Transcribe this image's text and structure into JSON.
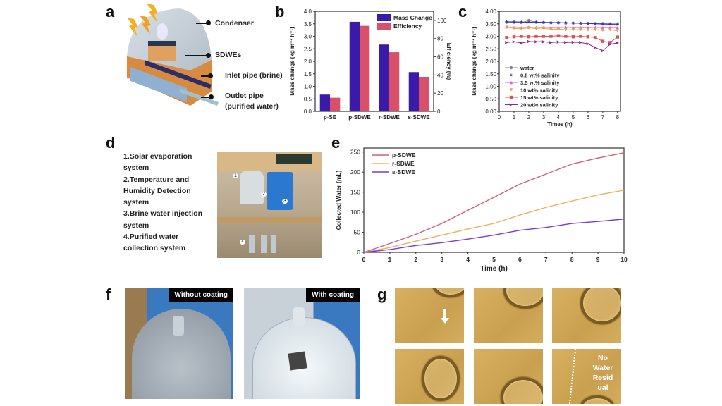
{
  "panels": {
    "a": {
      "label": "a",
      "callouts": [
        "Condenser",
        "SDWEs",
        "Inlet pipe (brine)",
        "Outlet pipe",
        "(purified water)"
      ]
    },
    "b": {
      "label": "b"
    },
    "c": {
      "label": "c"
    },
    "d": {
      "label": "d",
      "list": [
        "1.Solar evaporation",
        "system",
        "2.Temperature and",
        "Humidity Detection",
        "system",
        "3.Brine water injection",
        "system",
        "4.Purified water",
        "collection system"
      ],
      "photo_markers": [
        "1",
        "2",
        "3",
        "4"
      ]
    },
    "e": {
      "label": "e"
    },
    "f": {
      "label": "f",
      "captions": [
        "Without coating",
        "With coating"
      ]
    },
    "g": {
      "label": "g",
      "annotation": [
        "No",
        "Water",
        "Resid",
        "ual"
      ]
    }
  },
  "chart_data": [
    {
      "panel": "b",
      "type": "bar",
      "categories": [
        "p-SE",
        "p-SDWE",
        "r-SDWE",
        "s-SDWE"
      ],
      "series": [
        {
          "name": "Mass Change",
          "axis": "left",
          "color": "#3a1aa8",
          "values": [
            0.67,
            3.58,
            2.67,
            1.57
          ]
        },
        {
          "name": "Efficiency",
          "axis": "right",
          "color": "#d8506a",
          "values": [
            15,
            94,
            65,
            38
          ]
        }
      ],
      "ylabel": "Mass change (kg m⁻² h⁻¹)",
      "ylabel_right": "Efficiency (%)",
      "ylim": [
        0,
        4
      ],
      "yticks": [
        "0.0",
        "0.5",
        "1.0",
        "1.5",
        "2.0",
        "2.5",
        "3.0",
        "3.5",
        "4.0"
      ],
      "ylim_right": [
        0,
        110
      ],
      "yticks_right": [
        "0",
        "20",
        "40",
        "60",
        "80",
        "100"
      ],
      "legend": "top-right"
    },
    {
      "panel": "c",
      "type": "line",
      "xlabel": "Times (h)",
      "ylabel": "Mass change (kg m⁻² h⁻¹)",
      "xlim": [
        0,
        8.2
      ],
      "xticks": [
        "0",
        "1",
        "2",
        "3",
        "4",
        "5",
        "6",
        "7",
        "8"
      ],
      "ylim": [
        0,
        4
      ],
      "yticks": [
        "0.00",
        "0.50",
        "1.00",
        "1.50",
        "2.00",
        "2.50",
        "3.00",
        "3.50",
        "4.00"
      ],
      "legend": "bottom-left",
      "x": [
        0.5,
        1,
        1.5,
        2,
        2.5,
        3,
        3.5,
        4,
        4.5,
        5,
        5.5,
        6,
        6.5,
        7,
        7.5,
        8
      ],
      "series": [
        {
          "name": "water",
          "color": "#888888",
          "marker": "circle",
          "values": [
            3.56,
            3.56,
            3.55,
            3.63,
            3.56,
            3.55,
            3.54,
            3.54,
            3.53,
            3.53,
            3.52,
            3.52,
            3.51,
            3.51,
            3.5,
            3.5
          ]
        },
        {
          "name": "0.8 wt% salinity",
          "color": "#2a2ae0",
          "marker": "star",
          "values": [
            3.58,
            3.58,
            3.57,
            3.56,
            3.57,
            3.56,
            3.55,
            3.55,
            3.54,
            3.53,
            3.52,
            3.51,
            3.5,
            3.49,
            3.48,
            3.47
          ]
        },
        {
          "name": "3.5 wt% salinity",
          "color": "#e060e0",
          "marker": "triangle-up",
          "values": [
            3.38,
            3.36,
            3.35,
            3.37,
            3.36,
            3.36,
            3.35,
            3.35,
            3.36,
            3.35,
            3.35,
            3.35,
            3.36,
            3.35,
            3.35,
            3.35
          ]
        },
        {
          "name": "10 wt% salinity",
          "color": "#f0a040",
          "marker": "triangle-down",
          "values": [
            3.36,
            3.32,
            3.3,
            3.34,
            3.31,
            3.33,
            3.28,
            3.29,
            3.26,
            3.26,
            3.27,
            3.25,
            3.27,
            3.24,
            3.26,
            3.22
          ]
        },
        {
          "name": "15 wt% salinity",
          "color": "#e05050",
          "marker": "square",
          "values": [
            2.95,
            2.98,
            3.0,
            2.98,
            3.0,
            3.0,
            3.0,
            3.02,
            3.0,
            2.98,
            3.0,
            2.98,
            2.95,
            2.8,
            2.75,
            2.97
          ]
        },
        {
          "name": "20 wt% salinity",
          "color": "#8a2a9a",
          "marker": "triangle-right",
          "values": [
            2.75,
            2.78,
            2.73,
            2.79,
            2.78,
            2.78,
            2.75,
            2.77,
            2.75,
            2.76,
            2.75,
            2.7,
            2.55,
            2.42,
            2.68,
            2.74
          ]
        }
      ]
    },
    {
      "panel": "e",
      "type": "line",
      "xlabel": "Time (h)",
      "ylabel": "Collected Water (mL)",
      "xlim": [
        0,
        10
      ],
      "xticks": [
        "0",
        "1",
        "2",
        "3",
        "4",
        "5",
        "6",
        "7",
        "8",
        "9",
        "10"
      ],
      "ylim": [
        0,
        260
      ],
      "yticks": [
        "0",
        "50",
        "100",
        "150",
        "200",
        "250"
      ],
      "legend": "top-left",
      "x": [
        0,
        1,
        2,
        3,
        4,
        5,
        6,
        7,
        8,
        9,
        10
      ],
      "series": [
        {
          "name": "p-SDWE",
          "color": "#d0607a",
          "values": [
            0,
            22,
            45,
            72,
            105,
            137,
            170,
            195,
            220,
            235,
            248
          ]
        },
        {
          "name": "r-SDWE",
          "color": "#f0b060",
          "values": [
            0,
            12,
            28,
            43,
            58,
            72,
            93,
            112,
            128,
            143,
            155
          ]
        },
        {
          "name": "s-SDWE",
          "color": "#7a3ad8",
          "values": [
            0,
            7,
            17,
            24,
            33,
            43,
            55,
            62,
            72,
            77,
            83
          ]
        }
      ]
    }
  ]
}
